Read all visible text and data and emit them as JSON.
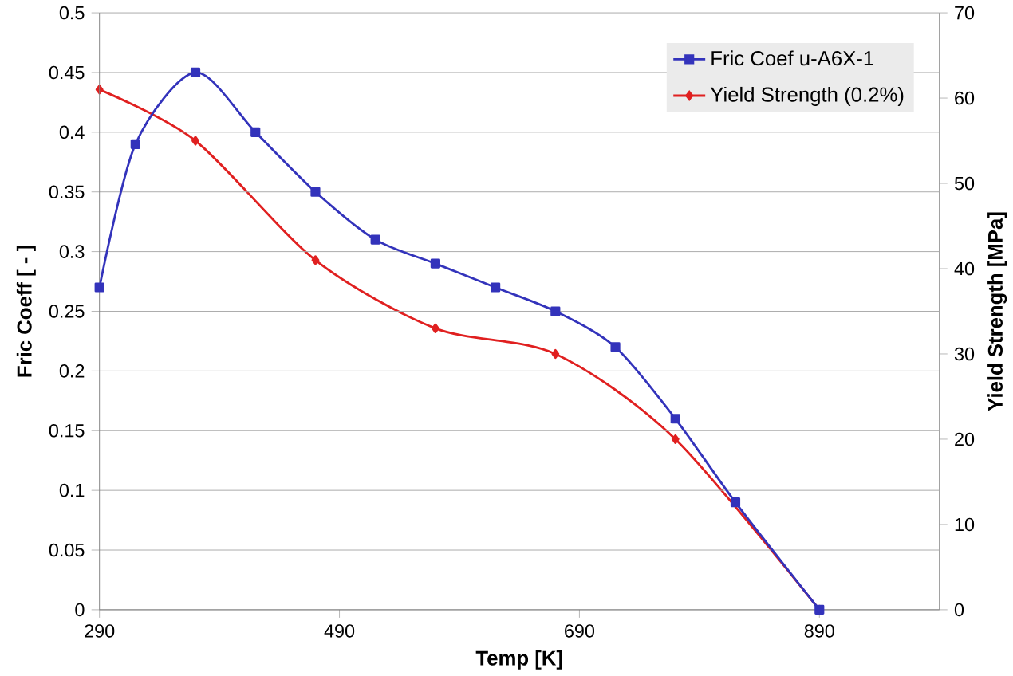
{
  "chart_data": {
    "type": "line",
    "xlabel": "Temp [K]",
    "ylabel": "Fric Coeff [ - ]",
    "y2label": "Yield Strength [MPa]",
    "xlim": [
      290,
      990
    ],
    "xticks": [
      290,
      490,
      690,
      890
    ],
    "ylim": [
      0,
      0.5
    ],
    "yticks": [
      0,
      0.05,
      0.1,
      0.15,
      0.2,
      0.25,
      0.3,
      0.35,
      0.4,
      0.45,
      0.5
    ],
    "y2lim": [
      0,
      70
    ],
    "y2ticks": [
      0,
      10,
      20,
      30,
      40,
      50,
      60,
      70
    ],
    "grid": "y",
    "legend": "top right",
    "series": [
      {
        "name": "Fric Coef u-A6X-1",
        "color": "#3333bb",
        "marker": "square",
        "x": [
          290,
          320,
          370,
          420,
          470,
          520,
          570,
          620,
          670,
          720,
          770,
          820,
          890
        ],
        "values": [
          0.27,
          0.39,
          0.45,
          0.4,
          0.35,
          0.31,
          0.29,
          0.27,
          0.25,
          0.22,
          0.16,
          0.09,
          0
        ]
      },
      {
        "name": "Yield Strength (0.2%)",
        "color": "#e02020",
        "marker": "diamond",
        "axis": "y2",
        "x": [
          290,
          370,
          470,
          570,
          670,
          770,
          890
        ],
        "values": [
          61,
          55,
          41,
          33,
          30,
          20,
          0
        ]
      }
    ]
  }
}
